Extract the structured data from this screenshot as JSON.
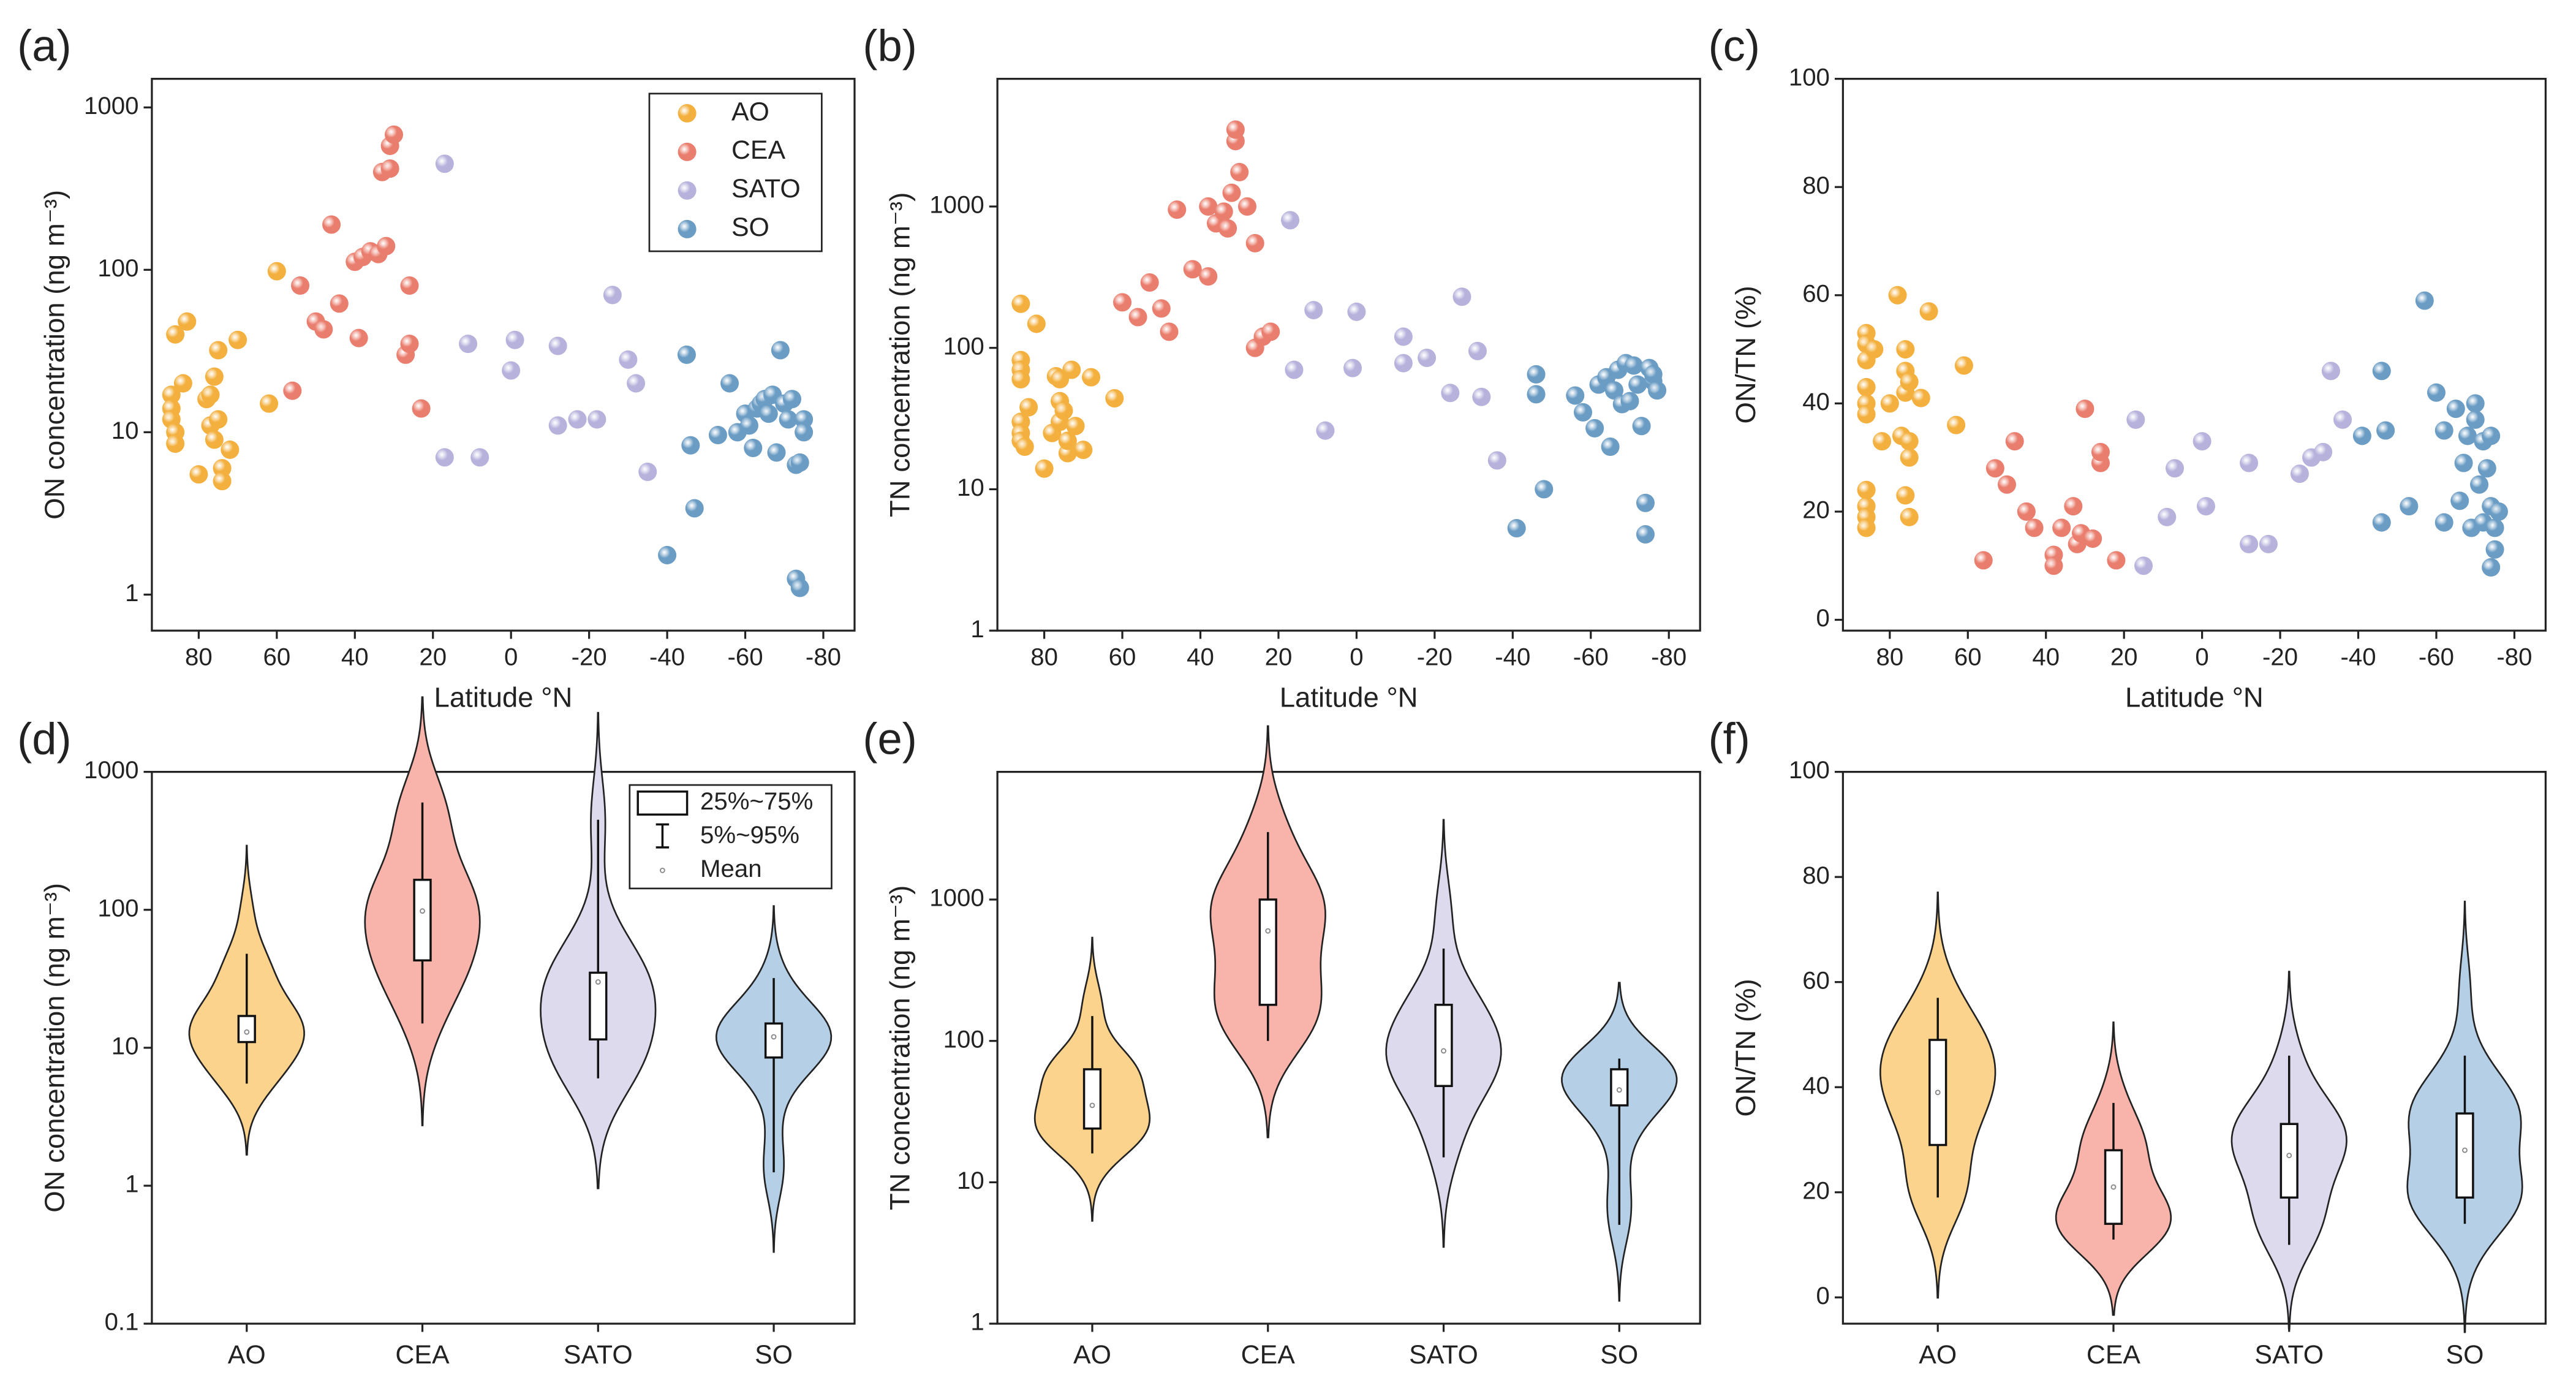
{
  "chart_data": [
    {
      "type": "scatter",
      "panel_label": "(a)",
      "xlabel": "Latitude °N",
      "ylabel": "ON concentration (ng m⁻³)",
      "log_scale": true,
      "xlim": [
        92,
        -88
      ],
      "xticks": [
        80,
        60,
        40,
        20,
        0,
        -20,
        -40,
        -60,
        -80
      ],
      "ylim": [
        0.6,
        1500
      ],
      "yticks": [
        1,
        10,
        100,
        1000
      ],
      "legend": "upper right",
      "series": [
        {
          "name": "AO",
          "color": "#f3b03e",
          "x": [
            86,
            87,
            87,
            87,
            86,
            86,
            84,
            83,
            80,
            78,
            77,
            77,
            76,
            75,
            76,
            75,
            74,
            74,
            72,
            70,
            62,
            60
          ],
          "y": [
            40,
            17,
            14,
            12,
            10,
            8.5,
            20,
            48,
            5.5,
            16,
            17,
            11,
            22,
            32,
            9,
            12,
            6,
            5,
            7.8,
            37,
            15,
            98
          ]
        },
        {
          "name": "CEA",
          "color": "#ea7e6e",
          "x": [
            56,
            54,
            50,
            48,
            46,
            44,
            40,
            39,
            38,
            36,
            34,
            32,
            33,
            31,
            31,
            30,
            27,
            26,
            26,
            23
          ],
          "y": [
            18,
            80,
            48,
            43,
            190,
            62,
            112,
            38,
            120,
            130,
            125,
            140,
            400,
            420,
            580,
            680,
            30,
            80,
            35,
            14
          ]
        },
        {
          "name": "SATO",
          "color": "#b6b2dc",
          "x": [
            17,
            17,
            11,
            8,
            0,
            -1,
            -12,
            -12,
            -17,
            -22,
            -26,
            -30,
            -32,
            -35
          ],
          "y": [
            450,
            7,
            35,
            7,
            24,
            37,
            11,
            34,
            12,
            12,
            70,
            28,
            20,
            5.7
          ]
        },
        {
          "name": "SO",
          "color": "#6a9cc4",
          "x": [
            -40,
            -45,
            -46,
            -47,
            -53,
            -56,
            -58,
            -60,
            -61,
            -62,
            -63,
            -64,
            -65,
            -66,
            -67,
            -68,
            -69,
            -70,
            -71,
            -72,
            -73,
            -74,
            -73,
            -74,
            -75,
            -75
          ],
          "y": [
            1.75,
            30,
            8.3,
            3.4,
            9.6,
            20,
            10,
            13,
            11,
            8,
            14,
            15,
            16,
            13,
            17,
            7.5,
            32,
            15,
            12,
            16,
            6.3,
            6.5,
            1.25,
            1.1,
            12,
            10
          ]
        }
      ]
    },
    {
      "type": "scatter",
      "panel_label": "(b)",
      "xlabel": "Latitude °N",
      "ylabel": "TN concentration (ng m⁻³)",
      "log_scale": true,
      "xlim": [
        92,
        -88
      ],
      "xticks": [
        80,
        60,
        40,
        20,
        0,
        -20,
        -40,
        -60,
        -80
      ],
      "ylim": [
        1,
        8000
      ],
      "yticks": [
        1,
        10,
        100,
        1000
      ],
      "series": [
        {
          "color": "#f3b03e",
          "x": [
            86,
            86,
            86,
            86,
            86,
            86,
            86,
            85,
            84,
            82,
            80,
            78,
            77,
            76,
            76,
            76,
            75,
            74,
            74,
            73,
            72,
            70,
            68,
            62
          ],
          "y": [
            205,
            82,
            70,
            60,
            30,
            25,
            22,
            20,
            38,
            148,
            14,
            25,
            63,
            60,
            30,
            42,
            36,
            18,
            22,
            70,
            28,
            19,
            62,
            44
          ]
        },
        {
          "color": "#ea7e6e",
          "x": [
            60,
            56,
            53,
            50,
            48,
            46,
            42,
            38,
            38,
            36,
            34,
            33,
            32,
            31,
            31,
            30,
            28,
            26,
            26,
            24,
            22
          ],
          "y": [
            210,
            165,
            290,
            190,
            130,
            950,
            360,
            1000,
            320,
            760,
            920,
            700,
            1250,
            2900,
            3500,
            1750,
            1000,
            100,
            550,
            120,
            130
          ]
        },
        {
          "color": "#b6b2dc",
          "x": [
            17,
            16,
            11,
            8,
            1,
            0,
            -12,
            -12,
            -18,
            -24,
            -27,
            -31,
            -32,
            -36
          ],
          "y": [
            800,
            70,
            185,
            26,
            72,
            180,
            120,
            78,
            85,
            48,
            230,
            95,
            45,
            16
          ]
        },
        {
          "color": "#6a9cc4",
          "x": [
            -41,
            -46,
            -46,
            -48,
            -56,
            -58,
            -61,
            -62,
            -64,
            -65,
            -66,
            -67,
            -68,
            -69,
            -70,
            -71,
            -72,
            -73,
            -74,
            -74,
            -75,
            -76,
            -76,
            -77
          ],
          "y": [
            5.3,
            65,
            47,
            10,
            46,
            35,
            27,
            55,
            62,
            20,
            50,
            70,
            40,
            78,
            42,
            75,
            55,
            28,
            8,
            4.8,
            72,
            58,
            65,
            50
          ]
        }
      ]
    },
    {
      "type": "scatter",
      "panel_label": "(c)",
      "xlabel": "Latitude °N",
      "ylabel": "ON/TN (%)",
      "log_scale": false,
      "xlim": [
        92,
        -88
      ],
      "xticks": [
        80,
        60,
        40,
        20,
        0,
        -20,
        -40,
        -60,
        -80
      ],
      "ylim": [
        -2,
        100
      ],
      "yticks": [
        0,
        20,
        40,
        60,
        80,
        100
      ],
      "series": [
        {
          "color": "#f3b03e",
          "x": [
            86,
            86,
            86,
            86,
            86,
            86,
            86,
            86,
            86,
            86,
            84,
            82,
            80,
            78,
            77,
            76,
            76,
            76,
            75,
            75,
            75,
            76,
            75,
            72,
            70,
            63,
            61
          ],
          "y": [
            53,
            51,
            48,
            43,
            40,
            38,
            24,
            21,
            19,
            17,
            50,
            33,
            40,
            60,
            34,
            50,
            46,
            42,
            44,
            33,
            30,
            23,
            19,
            41,
            57,
            36,
            47
          ]
        },
        {
          "color": "#ea7e6e",
          "x": [
            56,
            53,
            50,
            48,
            45,
            43,
            38,
            38,
            36,
            33,
            32,
            31,
            30,
            28,
            26,
            26,
            22
          ],
          "y": [
            11,
            28,
            25,
            33,
            20,
            17,
            12,
            10,
            17,
            21,
            14,
            16,
            39,
            15,
            29,
            31,
            11
          ]
        },
        {
          "color": "#b6b2dc",
          "x": [
            17,
            15,
            9,
            7,
            0,
            -1,
            -12,
            -12,
            -17,
            -25,
            -28,
            -31,
            -33,
            -36
          ],
          "y": [
            37,
            10,
            19,
            28,
            33,
            21,
            29,
            14,
            14,
            27,
            30,
            31,
            46,
            37
          ]
        },
        {
          "color": "#6a9cc4",
          "x": [
            -41,
            -46,
            -46,
            -47,
            -53,
            -57,
            -60,
            -62,
            -62,
            -65,
            -66,
            -67,
            -68,
            -69,
            -70,
            -70,
            -71,
            -72,
            -72,
            -73,
            -74,
            -74,
            -75,
            -75,
            -76,
            -74
          ],
          "y": [
            34,
            46,
            18,
            35,
            21,
            59,
            42,
            35,
            18,
            39,
            22,
            29,
            34,
            17,
            40,
            37,
            25,
            18,
            33,
            28,
            34,
            21,
            13,
            17,
            20,
            9.7
          ]
        }
      ]
    },
    {
      "type": "violin",
      "panel_label": "(d)",
      "ylabel": "ON concentration (ng m⁻³)",
      "log_scale": true,
      "ylim": [
        0.1,
        1000
      ],
      "yticks": [
        0.1,
        1,
        10,
        100,
        1000
      ],
      "categories": [
        "AO",
        "CEA",
        "SATO",
        "SO"
      ],
      "colors": [
        "#fbd38c",
        "#f8b3ab",
        "#dddaee",
        "#b5cfe6"
      ],
      "q1": [
        11,
        43,
        11.5,
        8.5
      ],
      "q3": [
        17,
        165,
        35,
        15
      ],
      "p5": [
        5.5,
        15,
        6,
        1.25
      ],
      "p95": [
        48,
        600,
        450,
        32
      ],
      "mean": [
        13,
        98,
        30,
        12
      ],
      "legend_items": [
        "25%~75%",
        "5%~95%",
        "Mean"
      ]
    },
    {
      "type": "violin",
      "panel_label": "(e)",
      "ylabel": "TN concentration (ng m⁻³)",
      "log_scale": true,
      "ylim": [
        1,
        8000
      ],
      "yticks": [
        1,
        10,
        100,
        1000
      ],
      "categories": [
        "AO",
        "CEA",
        "SATO",
        "SO"
      ],
      "colors": [
        "#fbd38c",
        "#f8b3ab",
        "#dddaee",
        "#b5cfe6"
      ],
      "q1": [
        24,
        180,
        48,
        35
      ],
      "q3": [
        63,
        1000,
        180,
        63
      ],
      "p5": [
        16,
        100,
        15,
        5
      ],
      "p95": [
        150,
        3000,
        450,
        75
      ],
      "mean": [
        35,
        600,
        85,
        45
      ]
    },
    {
      "type": "violin",
      "panel_label": "(f)",
      "ylabel": "ON/TN (%)",
      "log_scale": false,
      "ylim": [
        -5,
        100
      ],
      "yticks": [
        0,
        20,
        40,
        60,
        80,
        100
      ],
      "categories": [
        "AO",
        "CEA",
        "SATO",
        "SO"
      ],
      "colors": [
        "#fbd38c",
        "#f8b3ab",
        "#dddaee",
        "#b5cfe6"
      ],
      "q1": [
        29,
        14,
        19,
        19
      ],
      "q3": [
        49,
        28,
        33,
        35
      ],
      "p5": [
        19,
        11,
        10,
        14
      ],
      "p95": [
        57,
        37,
        46,
        46
      ],
      "mean": [
        39,
        21,
        27,
        28
      ]
    }
  ]
}
